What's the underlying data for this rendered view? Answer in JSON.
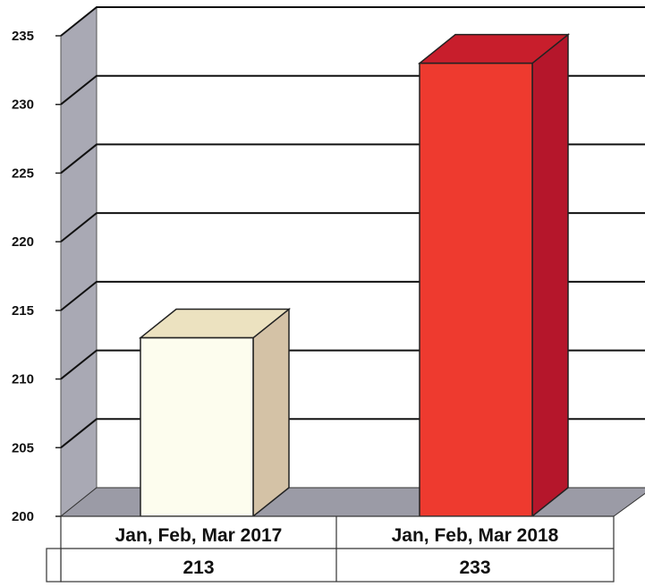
{
  "chart_data": {
    "type": "bar",
    "style": "3d",
    "title": "",
    "xlabel": "",
    "ylabel": "",
    "categories": [
      "Jan, Feb, Mar 2017",
      "Jan, Feb, Mar 2018"
    ],
    "series": [
      {
        "values": [
          213,
          233
        ]
      }
    ],
    "data_table": [
      "213",
      "233"
    ],
    "yticks": [
      200,
      205,
      210,
      215,
      220,
      225,
      230,
      235
    ],
    "ylim": [
      200,
      235
    ],
    "grid": true,
    "legend": "none",
    "colors": {
      "bars": [
        "#fdfdee",
        "#ee3a2f"
      ],
      "bar_sides": [
        "#d4c2a6",
        "#b5162b"
      ],
      "bar_tops": [
        "#ece2c0",
        "#c81e2c"
      ],
      "back_wall": "#ffffff",
      "side_wall": "#a9a9b4",
      "floor": "#9b9ba6",
      "gridline": "#111111"
    }
  }
}
